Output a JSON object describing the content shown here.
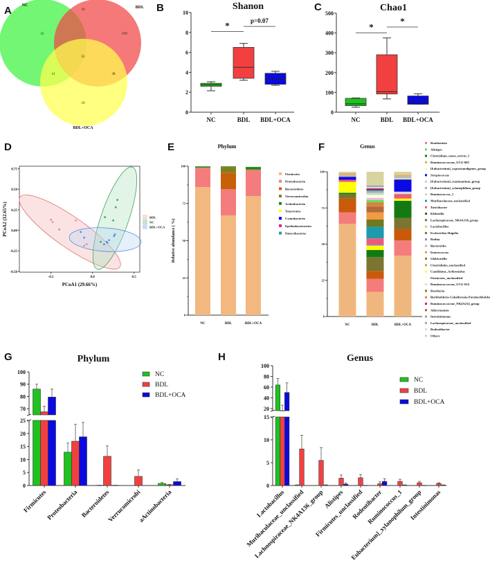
{
  "panel_labels": [
    "A",
    "B",
    "C",
    "D",
    "E",
    "F",
    "G",
    "H"
  ],
  "chart_data": [
    {
      "type": "venn",
      "sets": [
        {
          "label": "NC",
          "color": "#3df23d"
        },
        {
          "label": "BDL",
          "color": "#f24545"
        },
        {
          "label": "BDL+OCA",
          "color": "#ffff4d"
        }
      ],
      "regions": [
        {
          "sets": [
            "NC"
          ],
          "count": "35"
        },
        {
          "sets": [
            "NC",
            "BDL"
          ],
          "count": "19"
        },
        {
          "sets": [
            "BDL"
          ],
          "count": "678"
        },
        {
          "sets": [
            "NC",
            "BDL",
            "BDL+OCA"
          ],
          "count": "52"
        },
        {
          "sets": [
            "NC",
            "BDL+OCA"
          ],
          "count": "11"
        },
        {
          "sets": [
            "BDL",
            "BDL+OCA"
          ],
          "count": "38"
        },
        {
          "sets": [
            "BDL+OCA"
          ],
          "count": "10"
        }
      ]
    },
    {
      "type": "box",
      "title": "Shanon",
      "categories": [
        "NC",
        "BDL",
        "BDL+OCA"
      ],
      "ylim": [
        0,
        10
      ],
      "yticks": [
        0,
        2,
        4,
        6,
        8,
        10
      ],
      "boxes": [
        {
          "min": 2.15,
          "q1": 2.6,
          "median": 2.75,
          "q3": 2.9,
          "max": 3.05,
          "color": "#1fc21f"
        },
        {
          "min": 3.2,
          "q1": 3.4,
          "median": 4.5,
          "q3": 6.5,
          "max": 6.9,
          "color": "#f24040"
        },
        {
          "min": 2.7,
          "q1": 2.8,
          "median": 3.35,
          "q3": 3.9,
          "max": 4.1,
          "color": "#0a0ae0"
        }
      ],
      "significance": [
        {
          "from": 0,
          "to": 1,
          "level": 8.1,
          "label": "*"
        },
        {
          "from": 1,
          "to": 2,
          "level": 8.6,
          "label": "p=0.07"
        }
      ]
    },
    {
      "type": "box",
      "title": "Chao1",
      "categories": [
        "NC",
        "BDL",
        "BDL+OCA"
      ],
      "ylim": [
        0,
        500
      ],
      "yticks": [
        0,
        100,
        200,
        300,
        400,
        500
      ],
      "boxes": [
        {
          "min": 25,
          "q1": 33,
          "median": 42,
          "q3": 70,
          "max": 72,
          "color": "#1fc21f"
        },
        {
          "min": 67,
          "q1": 92,
          "median": 103,
          "q3": 290,
          "max": 375,
          "color": "#f24040"
        },
        {
          "min": 40,
          "q1": 40,
          "median": 52,
          "q3": 82,
          "max": 93,
          "color": "#0a0ae0"
        }
      ],
      "significance": [
        {
          "from": 0,
          "to": 1,
          "level": 400,
          "label": "*"
        },
        {
          "from": 1,
          "to": 2,
          "level": 430,
          "label": "*"
        }
      ]
    },
    {
      "type": "scatter",
      "xlabel": "PCoA1  (29.66%)",
      "ylabel": "PCoA2  (12.65%)",
      "xlim": [
        -0.88,
        0.57
      ],
      "ylim": [
        -0.51,
        0.78
      ],
      "xticks": [
        "-0.5",
        "0.0",
        "0.5"
      ],
      "yticks": [
        "-0.50",
        "-0.25",
        "0.00",
        "0.25",
        "0.50",
        "0.75"
      ],
      "legend_position": "right",
      "series": [
        {
          "name": "BDL",
          "color": "#e88a8a",
          "points": [
            [
              -0.5,
              0.13
            ],
            [
              -0.48,
              0.1
            ],
            [
              -0.4,
              0.01
            ],
            [
              -0.2,
              0.12
            ],
            [
              -0.1,
              -0.19
            ],
            [
              -0.07,
              -0.17
            ]
          ]
        },
        {
          "name": "NC",
          "color": "#3aa860",
          "points": [
            [
              0.15,
              0.16
            ],
            [
              0.28,
              0.28
            ],
            [
              0.3,
              0.37
            ],
            [
              0.25,
              0.12
            ],
            [
              0.1,
              -0.14
            ]
          ]
        },
        {
          "name": "BDL+OCA",
          "color": "#5a8ee0",
          "points": [
            [
              -0.14,
              -0.02
            ],
            [
              -0.1,
              -0.09
            ],
            [
              0.2,
              -0.12
            ],
            [
              0.26,
              -0.07
            ],
            [
              0.27,
              -0.05
            ],
            [
              0.17,
              -0.14
            ],
            [
              0.14,
              -0.17
            ],
            [
              0.18,
              -0.15
            ]
          ]
        }
      ]
    },
    {
      "type": "bar",
      "stacked": true,
      "title": "Phylum",
      "ylabel": "Relative abundance ( %)",
      "categories": [
        "NC",
        "BDL",
        "BDL+OCA"
      ],
      "ylim": [
        0,
        100
      ],
      "yticks": [
        0,
        25,
        50,
        75,
        100
      ],
      "series": [
        {
          "name": "Firmicutes",
          "color": "#f2b880",
          "values": [
            86,
            67,
            80
          ]
        },
        {
          "name": "Proteobacteria",
          "color": "#f47c7c",
          "values": [
            13,
            17.5,
            17.5
          ]
        },
        {
          "name": "Bacteroidetes",
          "color": "#c8600a",
          "values": [
            0.1,
            11,
            0.3
          ]
        },
        {
          "name": "Verrucomicrobia",
          "color": "#808020",
          "values": [
            0,
            4,
            0
          ]
        },
        {
          "name": "Actinobacteria",
          "color": "#1a8a1a",
          "values": [
            0.8,
            0.4,
            1.7
          ]
        },
        {
          "name": "Tenericutes",
          "color": "#ffff00",
          "values": [
            0.05,
            0.05,
            0.05
          ]
        },
        {
          "name": "Cyanobacteria",
          "color": "#0000e0",
          "values": [
            0,
            0,
            0
          ]
        },
        {
          "name": "Epsilonbacteraeota",
          "color": "#e0208a",
          "values": [
            0,
            0.05,
            0
          ]
        },
        {
          "name": "Patescibacteria",
          "color": "#20a0a0",
          "values": [
            0.05,
            0,
            0.05
          ]
        }
      ]
    },
    {
      "type": "bar",
      "stacked": true,
      "title": "Genus",
      "categories": [
        "NC",
        "BDL",
        "BDL+OCA"
      ],
      "ylim": [
        0,
        100
      ],
      "yticks": [
        0,
        25,
        50,
        75,
        100
      ],
      "series": [
        {
          "name": "Romboutsia",
          "color": "#f47c7c",
          "values": [
            8,
            9,
            10.5
          ]
        },
        {
          "name": "Alistipes",
          "color": "#5ee05e",
          "values": [
            0,
            1.5,
            0.3
          ]
        },
        {
          "name": "Clostridium_sensu_stricto_1",
          "color": "#137a13",
          "values": [
            1,
            5,
            12
          ]
        },
        {
          "name": "Ruminococcaceae_UCG-005",
          "color": "#e3a95a",
          "values": [
            1,
            0,
            0.7
          ]
        },
        {
          "name": "[Eubacterium]_coprostanoligenes_group",
          "color": "#fff7c2",
          "values": [
            0,
            0,
            0
          ]
        },
        {
          "name": "Streptococcus",
          "color": "#0a0ae6",
          "values": [
            2,
            0,
            8
          ]
        },
        {
          "name": "[Eubacterium]_ruminantium_group",
          "color": "#efb6dc",
          "values": [
            0,
            1.5,
            0.5
          ]
        },
        {
          "name": "[Eubacterium]_xylanophilum_group",
          "color": "#9aa7d8",
          "values": [
            0,
            1.5,
            0.5
          ]
        },
        {
          "name": "Ruminococcus_1",
          "color": "#bfe0b0",
          "values": [
            0,
            1.5,
            0
          ]
        },
        {
          "name": "Muribaculaceae_unclassified",
          "color": "#1e9aad",
          "values": [
            0,
            8,
            0
          ]
        },
        {
          "name": "Turicibacter",
          "color": "#f05a7a",
          "values": [
            1.5,
            4,
            3
          ]
        },
        {
          "name": "Klebsiella",
          "color": "#355e35",
          "values": [
            0,
            1,
            0.5
          ]
        },
        {
          "name": "Lachnospiraceae_NK4A136_group",
          "color": "#7b7530",
          "values": [
            3,
            9.5,
            7.5
          ]
        },
        {
          "name": "Lactobacillus",
          "color": "#efb77e",
          "values": [
            64,
            17,
            42
          ]
        },
        {
          "name": "Escherichia-Shigella",
          "color": "#6f7a1e",
          "values": [
            0,
            5,
            0
          ]
        },
        {
          "name": "Rothia",
          "color": "#9c7fc0",
          "values": [
            0,
            1,
            0
          ]
        },
        {
          "name": "Bacteroides",
          "color": "#c9b79e",
          "values": [
            1,
            0.5,
            1
          ]
        },
        {
          "name": "Enterococcus",
          "color": "#f39a45",
          "values": [
            0,
            5,
            0
          ]
        },
        {
          "name": "Globicatella",
          "color": "#b36a3a",
          "values": [
            0,
            4,
            0
          ]
        },
        {
          "name": "Clostridiales_unclassified",
          "color": "#a8b04a",
          "values": [
            0,
            0,
            0
          ]
        },
        {
          "name": "Candidatus_Arthromitus",
          "color": "#ffff00",
          "values": [
            7.5,
            3,
            1.5
          ]
        },
        {
          "name": "Firmicutes_unclassified",
          "color": "#fffbe8",
          "values": [
            0,
            2,
            0.5
          ]
        },
        {
          "name": "Ruminococcaceae_UCG-014",
          "color": "#c8e8c8",
          "values": [
            0,
            0,
            0
          ]
        },
        {
          "name": "Roseburia",
          "color": "#7d7a1c",
          "values": [
            0,
            0,
            0
          ]
        },
        {
          "name": "Burkholderia-Caballeronia-Paraburkholderia",
          "color": "#d4893a",
          "values": [
            0,
            3,
            0
          ]
        },
        {
          "name": "Ruminococcaceae_NK4A214_group",
          "color": "#e3007a",
          "values": [
            0,
            0.5,
            0
          ]
        },
        {
          "name": "Akkermansia",
          "color": "#c85a0a",
          "values": [
            9.5,
            5.5,
            8
          ]
        },
        {
          "name": "Intestinimonas",
          "color": "#7fa8a8",
          "values": [
            0,
            0,
            0
          ]
        },
        {
          "name": "Lachnospiraceae_unclassified",
          "color": "#a5a5b0",
          "values": [
            0.5,
            1,
            0.5
          ]
        },
        {
          "name": "Rodentibacter",
          "color": "#d8d8e8",
          "values": [
            0,
            1,
            1
          ]
        },
        {
          "name": "Others",
          "color": "#d8d4a0",
          "values": [
            1,
            9,
            2
          ]
        }
      ]
    },
    {
      "type": "bar",
      "grouped": true,
      "title": "Phylum",
      "categories": [
        "Firmicutes",
        "Proteobacteria",
        "Bacteroidetes",
        "Verrucomicrobi",
        "aActinobacteria"
      ],
      "y_axis_break": [
        25,
        65
      ],
      "yticks_lower": [
        0,
        5,
        10,
        15,
        20,
        25
      ],
      "yticks_upper": [
        70,
        80,
        90,
        100
      ],
      "ylim": [
        0,
        100
      ],
      "legend_position": "top-right",
      "series": [
        {
          "name": "NC",
          "color": "#1fc21f",
          "values": [
            86,
            12.8,
            0.1,
            0,
            0.8
          ],
          "errors": [
            4,
            3.5,
            0.05,
            0,
            0.4
          ]
        },
        {
          "name": "BDL",
          "color": "#f24040",
          "values": [
            67.5,
            17,
            11.2,
            3.5,
            0.3
          ],
          "errors": [
            4.5,
            6.5,
            4,
            2.5,
            0.15
          ]
        },
        {
          "name": "BDL+OCA",
          "color": "#0a0ae0",
          "values": [
            79.5,
            18.7,
            0.1,
            0,
            1.5
          ],
          "errors": [
            6.5,
            5.5,
            0.05,
            0,
            1
          ]
        }
      ]
    },
    {
      "type": "bar",
      "grouped": true,
      "title": "Genus",
      "categories": [
        "Lactobacillus",
        "Muribaculaceae_unclassified",
        "Lachnospiraceae_NK4A136_group",
        "Alistipes",
        "Firmicutes_unclassified",
        "Rodentibacter",
        "Ruminococcus_1",
        "Eubacterium]_xylanophilum_group",
        "Intestinimonas"
      ],
      "y_axis_break": [
        15,
        16
      ],
      "yticks_lower": [
        0,
        5,
        10,
        15
      ],
      "yticks_upper": [
        20,
        40,
        60,
        80,
        100
      ],
      "ylim": [
        0,
        100
      ],
      "legend_position": "top-right",
      "series": [
        {
          "name": "NC",
          "color": "#1fc21f",
          "values": [
            64,
            0.1,
            0,
            0,
            0,
            0,
            0,
            0,
            0
          ],
          "errors": [
            12,
            0.05,
            0,
            0,
            0,
            0,
            0,
            0,
            0
          ]
        },
        {
          "name": "BDL",
          "color": "#f24040",
          "values": [
            16.3,
            8,
            5.5,
            1.6,
            1.7,
            0.4,
            0.9,
            0.6,
            0.45
          ],
          "errors": [
            10,
            3,
            2.8,
            0.7,
            0.7,
            0.4,
            0.45,
            0.3,
            0.15
          ]
        },
        {
          "name": "BDL+OCA",
          "color": "#0a0ae0",
          "values": [
            50,
            0,
            0.1,
            0.3,
            0.05,
            0.9,
            0.1,
            0.05,
            0.1
          ],
          "errors": [
            18,
            0,
            0.05,
            0.25,
            0,
            0.6,
            0.05,
            0,
            0.05
          ]
        }
      ]
    }
  ]
}
